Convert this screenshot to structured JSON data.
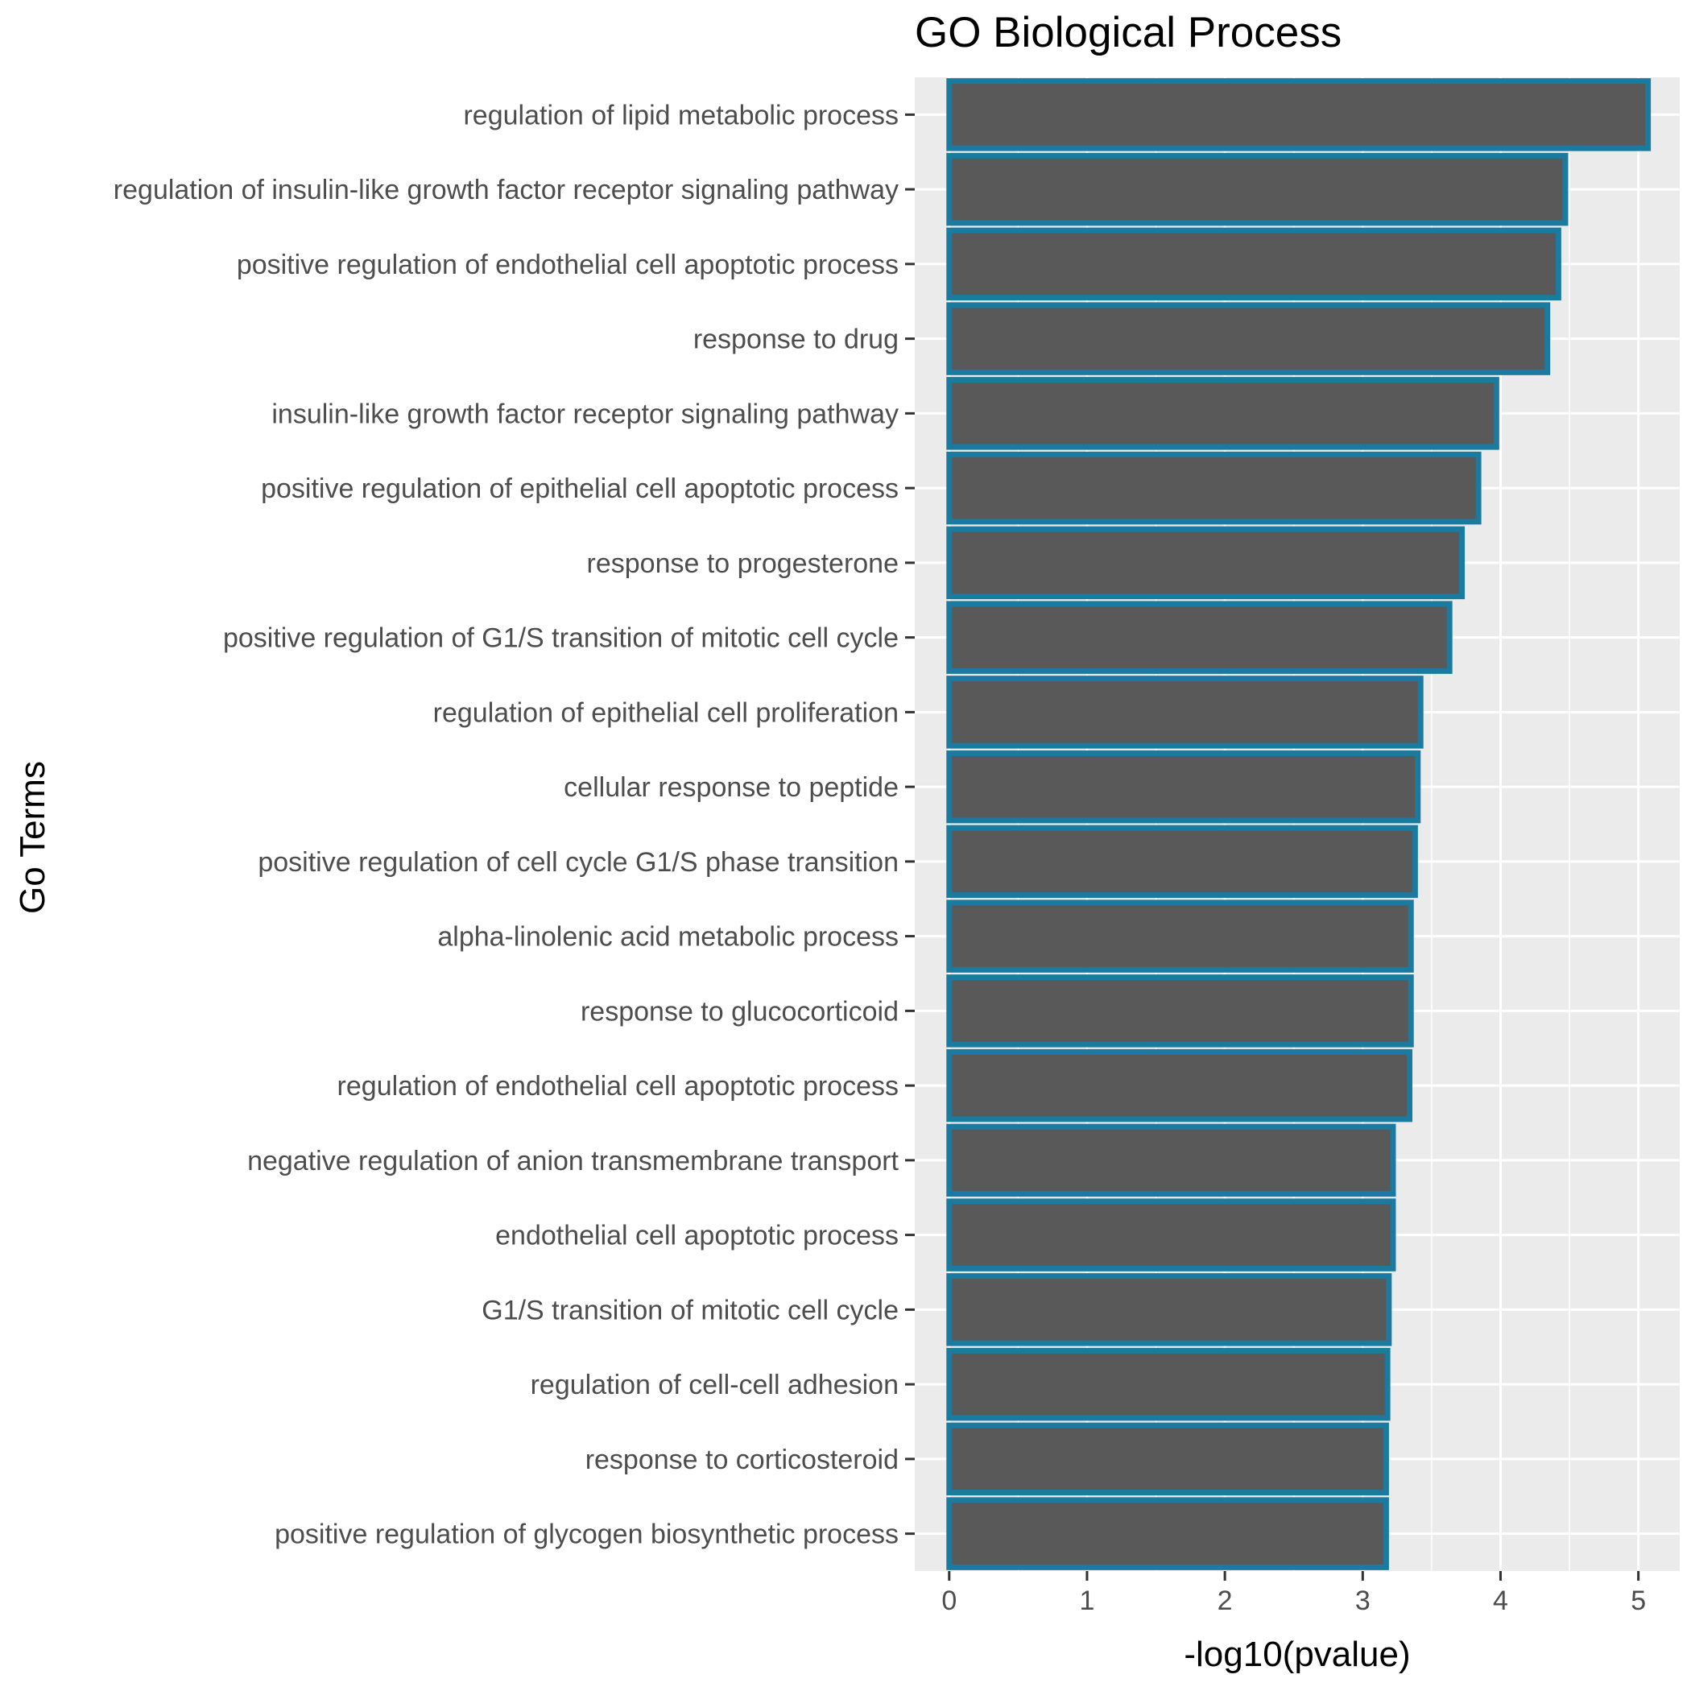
{
  "chart_data": {
    "type": "bar",
    "orientation": "horizontal",
    "title": "GO Biological Process",
    "xlabel": "-log10(pvalue)",
    "ylabel": "Go Terms",
    "xlim": [
      -0.25,
      5.3
    ],
    "xticks": [
      0,
      1,
      2,
      3,
      4,
      5
    ],
    "grid": true,
    "legend": "none",
    "colors": {
      "panel_background": "#ebebeb",
      "grid": "#ffffff",
      "bar_fill": "#595959",
      "bar_outline": "#1a7aa0"
    },
    "categories": [
      "regulation of lipid metabolic process",
      "regulation of insulin-like growth factor receptor signaling pathway",
      "positive regulation of endothelial cell apoptotic process",
      "response to drug",
      "insulin-like growth factor receptor signaling pathway",
      "positive regulation of epithelial cell apoptotic process",
      "response to progesterone",
      "positive regulation of G1/S transition of mitotic cell cycle",
      "regulation of epithelial cell proliferation",
      "cellular response to peptide",
      "positive regulation of cell cycle G1/S phase transition",
      "alpha-linolenic acid metabolic process",
      "response to glucocorticoid",
      "regulation of endothelial cell apoptotic process",
      "negative regulation of anion transmembrane transport",
      "endothelial cell apoptotic process",
      "G1/S transition of mitotic cell cycle",
      "regulation of cell-cell adhesion",
      "response to corticosteroid",
      "positive regulation of glycogen biosynthetic process"
    ],
    "values": [
      5.07,
      4.47,
      4.42,
      4.34,
      3.97,
      3.84,
      3.72,
      3.63,
      3.42,
      3.4,
      3.38,
      3.35,
      3.35,
      3.34,
      3.22,
      3.22,
      3.19,
      3.18,
      3.17,
      3.17
    ]
  }
}
